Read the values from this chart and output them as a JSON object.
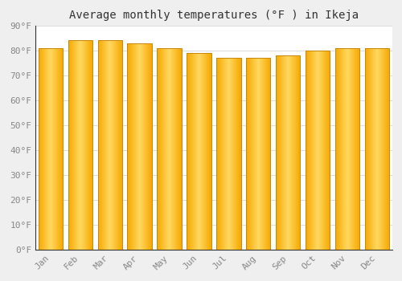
{
  "title": "Average monthly temperatures (°F ) in Ikeja",
  "months": [
    "Jan",
    "Feb",
    "Mar",
    "Apr",
    "May",
    "Jun",
    "Jul",
    "Aug",
    "Sep",
    "Oct",
    "Nov",
    "Dec"
  ],
  "values": [
    81,
    84,
    84,
    83,
    81,
    79,
    77,
    77,
    78,
    80,
    81,
    81
  ],
  "ylim": [
    0,
    90
  ],
  "yticks": [
    0,
    10,
    20,
    30,
    40,
    50,
    60,
    70,
    80,
    90
  ],
  "bar_color_center": "#FFD060",
  "bar_color_edge": "#F5A800",
  "bar_edge_color": "#C8870A",
  "background_color": "#FFFFFF",
  "outer_background": "#EFEFEF",
  "grid_color": "#DDDDDD",
  "title_fontsize": 10,
  "tick_fontsize": 8,
  "tick_color": "#888888",
  "font_family": "monospace"
}
